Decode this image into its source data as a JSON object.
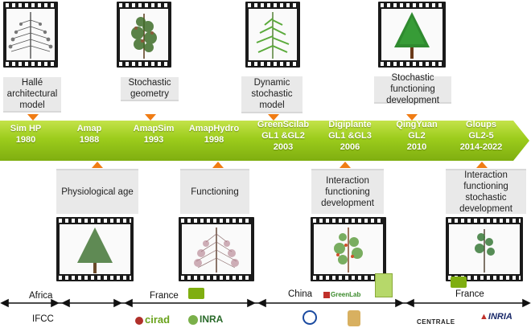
{
  "stages": [
    {
      "name": "Sim HP",
      "sub": "",
      "year": "1980"
    },
    {
      "name": "Amap",
      "sub": "",
      "year": "1988"
    },
    {
      "name": "AmapSim",
      "sub": "",
      "year": "1993"
    },
    {
      "name": "AmapHydro",
      "sub": "",
      "year": "1998"
    },
    {
      "name": "GreenScilab",
      "sub": "GL1 &GL2",
      "year": "2003"
    },
    {
      "name": "Digiplante",
      "sub": "GL1 &GL3",
      "year": "2006"
    },
    {
      "name": "QingYuan",
      "sub": "GL2",
      "year": "2010"
    },
    {
      "name": "Gloups",
      "sub": "GL2-5",
      "year": "2014-2022"
    }
  ],
  "top_labels": [
    "Hallé architectural model",
    "Stochastic geometry",
    "Dynamic stochastic model",
    "Stochastic functioning development"
  ],
  "bottom_labels": [
    "Physiological age",
    "Functioning",
    "Interaction functioning development",
    "Interaction functioning stochastic development"
  ],
  "countries": [
    "Africa",
    "France",
    "China",
    "France"
  ],
  "footer": {
    "ifcc": "IFCC",
    "logos": [
      "cirad",
      "INRA",
      "GreenLab",
      "CENTRALE",
      "INRIA",
      "AMAP"
    ]
  },
  "colors": {
    "band": "#9ccc1c",
    "arrow": "#f07c14",
    "label_bg": "#e9e9e9"
  }
}
